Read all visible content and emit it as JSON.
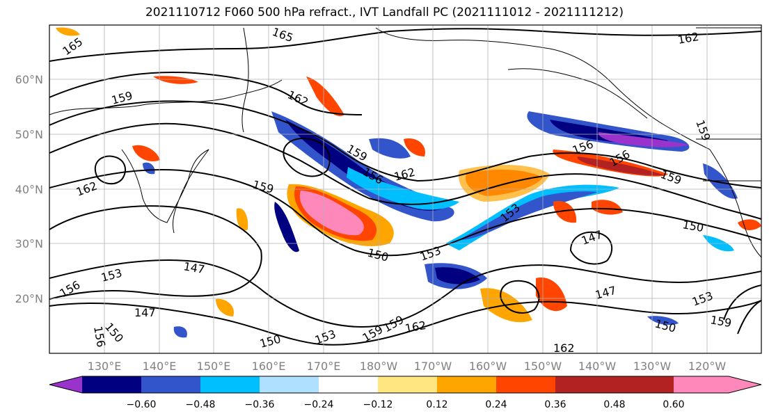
{
  "title": "2021110712 F060 500 hPa refract., IVT Landfall PC (2021111012 - 2021111212)",
  "map": {
    "lat_labels": [
      "60°N",
      "50°N",
      "40°N",
      "30°N",
      "20°N"
    ],
    "lon_labels": [
      "130°E",
      "140°E",
      "150°E",
      "160°E",
      "170°E",
      "180°W",
      "170°W",
      "160°W",
      "150°W",
      "140°W",
      "130°W",
      "120°W"
    ],
    "contour_labels": [
      "165",
      "165",
      "162",
      "159",
      "162",
      "162",
      "159",
      "156",
      "162",
      "159",
      "156",
      "156",
      "159",
      "153",
      "150",
      "147",
      "150",
      "153",
      "156",
      "147",
      "150",
      "147",
      "150",
      "153",
      "159",
      "159",
      "162",
      "153",
      "147",
      "150",
      "153",
      "159",
      "162",
      "156",
      "159"
    ]
  },
  "colorbar": {
    "ticks": [
      "−0.60",
      "−0.48",
      "−0.36",
      "−0.24",
      "−0.12",
      "0.12",
      "0.24",
      "0.36",
      "0.48",
      "0.60"
    ],
    "colors": [
      "#9933cc",
      "#000080",
      "#3355cc",
      "#00bfff",
      "#b0e0ff",
      "#ffffff",
      "#ffe680",
      "#ffa500",
      "#ff4500",
      "#b22222",
      "#ff88bb"
    ]
  }
}
